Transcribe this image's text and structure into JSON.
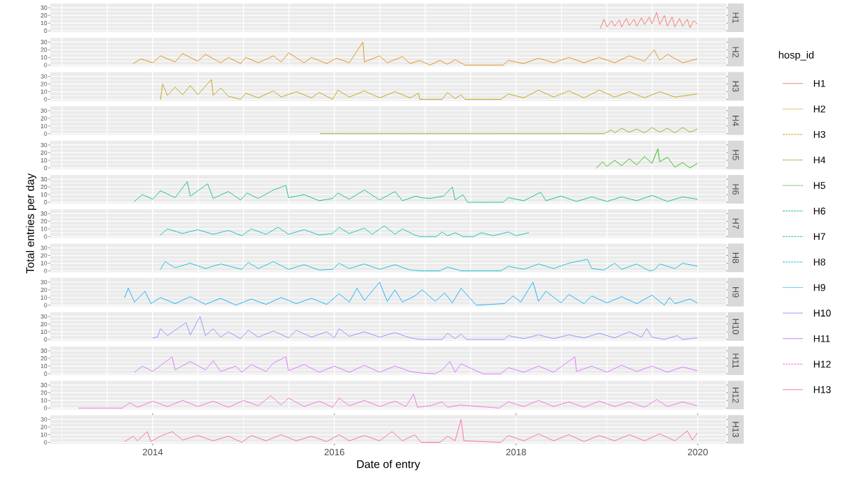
{
  "chart_data": [
    {
      "type": "line",
      "legend": "right",
      "legend_title": "hosp_id",
      "grid": true,
      "tick_labels": "y",
      "xlim": [
        "2012-11-15",
        "2020-04-25"
      ],
      "ylim": [
        -1.7,
        35.6
      ],
      "xticks": [
        {
          "value": "2013-01-01",
          "label": null
        },
        {
          "value": "2014-01-01",
          "label": null
        },
        {
          "value": "2015-01-01",
          "label": null
        },
        {
          "value": "2016-01-01",
          "label": null
        },
        {
          "value": "2017-01-01",
          "label": null
        },
        {
          "value": "2018-01-01",
          "label": null
        },
        {
          "value": "2019-01-01",
          "label": null
        },
        {
          "value": "2020-01-01",
          "label": null
        }
      ],
      "yticks": [
        0,
        {
          "value": 5,
          "label": null
        },
        10,
        {
          "value": 15,
          "label": null
        },
        20,
        {
          "value": 25,
          "label": null
        },
        30
      ],
      "series": [
        {
          "name": "H1",
          "color": "#f8766d",
          "line_style": "solid",
          "x": [
            "2018-12-05",
            "2018-12-20",
            "2019-01",
            "2019-01-20",
            "2019-02",
            "2019-02-20",
            "2019-03",
            "2019-03-20",
            "2019-04",
            "2019-04-20",
            "2019-05",
            "2019-05-20",
            "2019-06",
            "2019-06-20",
            "2019-07",
            "2019-07-20",
            "2019-08",
            "2019-08-20",
            "2019-09",
            "2019-09-20",
            "2019-10",
            "2019-10-20",
            "2019-11",
            "2019-11-20",
            "2019-12",
            "2019-12-15",
            "2019-12-30"
          ],
          "values": [
            3,
            15,
            5,
            13,
            6,
            14,
            5,
            16,
            7,
            15,
            6,
            17,
            8,
            18,
            9,
            24,
            8,
            20,
            6,
            18,
            5,
            16,
            6,
            15,
            4,
            13,
            9
          ]
        }
      ]
    },
    {
      "type": "line",
      "grid": true,
      "tick_labels": "y",
      "xlim": [
        "2012-11-15",
        "2020-04-25"
      ],
      "ylim": [
        -1.7,
        35.6
      ],
      "xticks": [
        {
          "value": "2013-01-01",
          "label": null
        },
        {
          "value": "2014-01-01",
          "label": null
        },
        {
          "value": "2015-01-01",
          "label": null
        },
        {
          "value": "2016-01-01",
          "label": null
        },
        {
          "value": "2017-01-01",
          "label": null
        },
        {
          "value": "2018-01-01",
          "label": null
        },
        {
          "value": "2019-01-01",
          "label": null
        },
        {
          "value": "2020-01-01",
          "label": null
        }
      ],
      "yticks": [
        0,
        {
          "value": 5,
          "label": null
        },
        10,
        {
          "value": 15,
          "label": null
        },
        20,
        {
          "value": 25,
          "label": null
        },
        30
      ],
      "series": [
        {
          "name": "H2",
          "color": "#e18a00",
          "line_style": "dotted",
          "x": [
            "2013-10-15",
            "2013-11-15",
            "2014-01",
            "2014-02",
            "2014-04",
            "2014-05",
            "2014-07",
            "2014-08",
            "2014-10",
            "2014-11",
            "2014-12-20",
            "2015-01-10",
            "2015-03",
            "2015-05",
            "2015-06",
            "2015-07",
            "2015-09",
            "2015-10",
            "2015-12",
            "2016-01-10",
            "2016-03",
            "2016-04-25",
            "2016-05",
            "2016-07",
            "2016-08",
            "2016-10",
            "2016-11",
            "2016-12-10",
            "2017-01-20",
            "2017-03",
            "2017-04",
            "2017-05",
            "2017-06-10",
            "2017-11-10",
            "2017-12",
            "2018-02",
            "2018-04",
            "2018-06",
            "2018-08",
            "2018-10",
            "2018-12",
            "2019-02",
            "2019-04",
            "2019-06",
            "2019-07-10",
            "2019-08",
            "2019-09",
            "2019-11",
            "2019-12-30"
          ],
          "values": [
            2,
            8,
            3,
            12,
            4,
            15,
            5,
            14,
            3,
            10,
            2,
            10,
            3,
            12,
            4,
            16,
            3,
            10,
            2,
            9,
            3,
            30,
            4,
            12,
            3,
            11,
            2,
            6,
            0,
            6,
            1,
            7,
            0,
            0,
            6,
            2,
            9,
            3,
            10,
            3,
            10,
            3,
            12,
            5,
            20,
            6,
            14,
            3,
            8
          ]
        }
      ]
    },
    {
      "type": "line",
      "grid": true,
      "tick_labels": "y",
      "xlim": [
        "2012-11-15",
        "2020-04-25"
      ],
      "ylim": [
        -1.7,
        35.6
      ],
      "xticks": [
        {
          "value": "2013-01-01",
          "label": null
        },
        {
          "value": "2014-01-01",
          "label": null
        },
        {
          "value": "2015-01-01",
          "label": null
        },
        {
          "value": "2016-01-01",
          "label": null
        },
        {
          "value": "2017-01-01",
          "label": null
        },
        {
          "value": "2018-01-01",
          "label": null
        },
        {
          "value": "2019-01-01",
          "label": null
        },
        {
          "value": "2020-01-01",
          "label": null
        }
      ],
      "yticks": [
        0,
        {
          "value": 5,
          "label": null
        },
        10,
        {
          "value": 15,
          "label": null
        },
        20,
        {
          "value": 25,
          "label": null
        },
        30
      ],
      "series": [
        {
          "name": "H3",
          "color": "#be9c00",
          "line_style": "dashed",
          "x": [
            "2014-02-01",
            "2014-02-10",
            "2014-03",
            "2014-04",
            "2014-05",
            "2014-06",
            "2014-07",
            "2014-08-25",
            "2014-09",
            "2014-10",
            "2014-11",
            "2014-12-20",
            "2015-01-10",
            "2015-03",
            "2015-05",
            "2015-06",
            "2015-08",
            "2015-10",
            "2015-11",
            "2015-12-25",
            "2016-01-15",
            "2016-03",
            "2016-05",
            "2016-07",
            "2016-09",
            "2016-11",
            "2016-12-05",
            "2016-12-10",
            "2017-03-10",
            "2017-04",
            "2017-05",
            "2017-05-25",
            "2017-06-10",
            "2017-11-01",
            "2017-12",
            "2018-02",
            "2018-04",
            "2018-06",
            "2018-08",
            "2018-10",
            "2018-12",
            "2019-02",
            "2019-04",
            "2019-06",
            "2019-08",
            "2019-10",
            "2019-12-30"
          ],
          "values": [
            0,
            20,
            5,
            16,
            6,
            18,
            6,
            26,
            5,
            15,
            4,
            0,
            8,
            2,
            11,
            3,
            10,
            2,
            9,
            0,
            12,
            3,
            11,
            2,
            10,
            2,
            8,
            0,
            0,
            9,
            1,
            6,
            0,
            0,
            7,
            2,
            12,
            3,
            11,
            2,
            12,
            3,
            10,
            2,
            10,
            3,
            7
          ]
        }
      ]
    },
    {
      "type": "line",
      "grid": true,
      "tick_labels": "y",
      "xlim": [
        "2012-11-15",
        "2020-04-25"
      ],
      "ylim": [
        -1.7,
        35.6
      ],
      "xticks": [
        {
          "value": "2013-01-01",
          "label": null
        },
        {
          "value": "2014-01-01",
          "label": null
        },
        {
          "value": "2015-01-01",
          "label": null
        },
        {
          "value": "2016-01-01",
          "label": null
        },
        {
          "value": "2017-01-01",
          "label": null
        },
        {
          "value": "2018-01-01",
          "label": null
        },
        {
          "value": "2019-01-01",
          "label": null
        },
        {
          "value": "2020-01-01",
          "label": null
        }
      ],
      "yticks": [
        0,
        {
          "value": 5,
          "label": null
        },
        10,
        {
          "value": 15,
          "label": null
        },
        20,
        {
          "value": 25,
          "label": null
        },
        30
      ],
      "series": [
        {
          "name": "H4",
          "color": "#8cab00",
          "line_style": "dashed",
          "x": [
            "2015-11-05",
            "2018-12-20",
            "2019-01-20",
            "2019-02",
            "2019-03",
            "2019-04",
            "2019-05",
            "2019-06",
            "2019-07",
            "2019-08",
            "2019-09",
            "2019-10",
            "2019-11",
            "2019-12",
            "2019-12-30"
          ],
          "values": [
            0,
            0,
            5,
            1,
            7,
            2,
            6,
            1,
            8,
            2,
            7,
            1,
            8,
            2,
            6
          ]
        }
      ]
    },
    {
      "type": "line",
      "grid": true,
      "tick_labels": "y",
      "xlim": [
        "2012-11-15",
        "2020-04-25"
      ],
      "ylim": [
        -1.7,
        35.6
      ],
      "xticks": [
        {
          "value": "2013-01-01",
          "label": null
        },
        {
          "value": "2014-01-01",
          "label": null
        },
        {
          "value": "2015-01-01",
          "label": null
        },
        {
          "value": "2016-01-01",
          "label": null
        },
        {
          "value": "2017-01-01",
          "label": null
        },
        {
          "value": "2018-01-01",
          "label": null
        },
        {
          "value": "2019-01-01",
          "label": null
        },
        {
          "value": "2020-01-01",
          "label": null
        }
      ],
      "yticks": [
        0,
        {
          "value": 5,
          "label": null
        },
        10,
        {
          "value": 15,
          "label": null
        },
        20,
        {
          "value": 25,
          "label": null
        },
        30
      ],
      "series": [
        {
          "name": "H5",
          "color": "#24b700",
          "line_style": "dotted",
          "x": [
            "2018-11-20",
            "2018-12-15",
            "2019-01",
            "2019-02",
            "2019-03",
            "2019-04",
            "2019-05",
            "2019-06",
            "2019-07",
            "2019-07-25",
            "2019-08",
            "2019-09",
            "2019-10",
            "2019-11",
            "2019-12",
            "2019-12-30"
          ],
          "values": [
            0,
            8,
            2,
            10,
            3,
            12,
            4,
            15,
            6,
            25,
            8,
            14,
            1,
            7,
            0,
            6
          ]
        }
      ]
    },
    {
      "type": "line",
      "grid": true,
      "tick_labels": "y",
      "xlim": [
        "2012-11-15",
        "2020-04-25"
      ],
      "ylim": [
        -1.7,
        35.6
      ],
      "xticks": [
        {
          "value": "2013-01-01",
          "label": null
        },
        {
          "value": "2014-01-01",
          "label": null
        },
        {
          "value": "2015-01-01",
          "label": null
        },
        {
          "value": "2016-01-01",
          "label": null
        },
        {
          "value": "2017-01-01",
          "label": null
        },
        {
          "value": "2018-01-01",
          "label": null
        },
        {
          "value": "2019-01-01",
          "label": null
        },
        {
          "value": "2020-01-01",
          "label": null
        }
      ],
      "yticks": [
        0,
        {
          "value": 5,
          "label": null
        },
        10,
        {
          "value": 15,
          "label": null
        },
        20,
        {
          "value": 25,
          "label": null
        },
        30
      ],
      "series": [
        {
          "name": "H6",
          "color": "#00be70",
          "line_style": "dashed",
          "x": [
            "2013-10-20",
            "2013-11-20",
            "2014-01",
            "2014-02",
            "2014-04",
            "2014-05-20",
            "2014-06",
            "2014-08-10",
            "2014-09",
            "2014-11",
            "2014-12-20",
            "2015-01-15",
            "2015-03",
            "2015-05",
            "2015-06-20",
            "2015-07",
            "2015-09",
            "2015-11",
            "2015-12-25",
            "2016-01-15",
            "2016-03",
            "2016-05",
            "2016-07",
            "2016-09",
            "2016-10",
            "2016-11-25",
            "2016-12-15",
            "2017-01-20",
            "2017-03-15",
            "2017-04-20",
            "2017-05",
            "2017-06-01",
            "2017-06-20",
            "2017-11-10",
            "2017-12",
            "2018-02",
            "2018-04-10",
            "2018-05",
            "2018-07",
            "2018-09",
            "2018-11",
            "2019-01",
            "2019-03",
            "2019-05",
            "2019-07",
            "2019-09",
            "2019-11",
            "2019-12-30"
          ],
          "values": [
            1,
            10,
            4,
            15,
            6,
            27,
            8,
            24,
            5,
            14,
            3,
            12,
            5,
            16,
            22,
            6,
            10,
            2,
            5,
            12,
            4,
            16,
            3,
            14,
            2,
            8,
            6,
            5,
            8,
            20,
            3,
            10,
            0,
            0,
            6,
            2,
            13,
            2,
            8,
            1,
            7,
            1,
            7,
            2,
            9,
            1,
            7,
            4
          ]
        }
      ]
    },
    {
      "type": "line",
      "ylabel": "Total entries per day",
      "grid": true,
      "tick_labels": "y",
      "xlim": [
        "2012-11-15",
        "2020-04-25"
      ],
      "ylim": [
        -1.7,
        35.6
      ],
      "xticks": [
        {
          "value": "2013-01-01",
          "label": null
        },
        {
          "value": "2014-01-01",
          "label": null
        },
        {
          "value": "2015-01-01",
          "label": null
        },
        {
          "value": "2016-01-01",
          "label": null
        },
        {
          "value": "2017-01-01",
          "label": null
        },
        {
          "value": "2018-01-01",
          "label": null
        },
        {
          "value": "2019-01-01",
          "label": null
        },
        {
          "value": "2020-01-01",
          "label": null
        }
      ],
      "yticks": [
        0,
        {
          "value": 5,
          "label": null
        },
        10,
        {
          "value": 15,
          "label": null
        },
        20,
        {
          "value": 25,
          "label": null
        },
        30
      ],
      "series": [
        {
          "name": "H7",
          "color": "#00c1ab",
          "line_style": "dashed",
          "x": [
            "2014-02-01",
            "2014-03",
            "2014-05",
            "2014-07",
            "2014-09",
            "2014-11",
            "2014-12-25",
            "2015-02",
            "2015-04",
            "2015-05-20",
            "2015-07",
            "2015-09",
            "2015-11",
            "2015-12-25",
            "2016-01-20",
            "2016-03",
            "2016-05",
            "2016-06",
            "2016-07-20",
            "2016-09",
            "2016-10",
            "2016-11-20",
            "2016-12-10",
            "2017-02-15",
            "2017-03-10",
            "2017-04",
            "2017-05",
            "2017-06-01",
            "2017-07-15",
            "2017-08-15",
            "2017-10",
            "2017-12",
            "2018-01",
            "2018-02-20"
          ],
          "values": [
            2,
            10,
            4,
            9,
            3,
            8,
            1,
            10,
            3,
            12,
            3,
            9,
            2,
            4,
            12,
            4,
            11,
            3,
            14,
            3,
            10,
            2,
            0,
            0,
            6,
            1,
            5,
            0,
            0,
            5,
            1,
            6,
            1,
            5
          ]
        }
      ]
    },
    {
      "type": "line",
      "grid": true,
      "tick_labels": "y",
      "xlim": [
        "2012-11-15",
        "2020-04-25"
      ],
      "ylim": [
        -1.7,
        35.6
      ],
      "xticks": [
        {
          "value": "2013-01-01",
          "label": null
        },
        {
          "value": "2014-01-01",
          "label": null
        },
        {
          "value": "2015-01-01",
          "label": null
        },
        {
          "value": "2016-01-01",
          "label": null
        },
        {
          "value": "2017-01-01",
          "label": null
        },
        {
          "value": "2018-01-01",
          "label": null
        },
        {
          "value": "2019-01-01",
          "label": null
        },
        {
          "value": "2020-01-01",
          "label": null
        }
      ],
      "yticks": [
        0,
        {
          "value": 5,
          "label": null
        },
        10,
        {
          "value": 15,
          "label": null
        },
        20,
        {
          "value": 25,
          "label": null
        },
        30
      ],
      "series": [
        {
          "name": "H8",
          "color": "#00bbda",
          "line_style": "dashed",
          "x": [
            "2014-02-01",
            "2014-02-20",
            "2014-04",
            "2014-06",
            "2014-08",
            "2014-10",
            "2014-12-25",
            "2015-01-20",
            "2015-03",
            "2015-05",
            "2015-07",
            "2015-09",
            "2015-11",
            "2015-12-25",
            "2016-01-20",
            "2016-03",
            "2016-05",
            "2016-07",
            "2016-09",
            "2016-11",
            "2016-12-15",
            "2017-03",
            "2017-04",
            "2017-05-25",
            "2017-11",
            "2017-12",
            "2018-02",
            "2018-04",
            "2018-06",
            "2018-08",
            "2018-10-15",
            "2018-11",
            "2018-12-20",
            "2019-02",
            "2019-03",
            "2019-05",
            "2019-06-20",
            "2019-07-10",
            "2019-08",
            "2019-10",
            "2019-11",
            "2019-12-30"
          ],
          "values": [
            2,
            12,
            4,
            10,
            3,
            9,
            2,
            11,
            3,
            12,
            2,
            8,
            1,
            2,
            10,
            3,
            9,
            2,
            8,
            1,
            0,
            0,
            5,
            0,
            0,
            6,
            2,
            9,
            3,
            10,
            15,
            3,
            1,
            10,
            2,
            9,
            0,
            1,
            9,
            3,
            10,
            6
          ]
        }
      ]
    },
    {
      "type": "line",
      "grid": true,
      "tick_labels": "y",
      "xlim": [
        "2012-11-15",
        "2020-04-25"
      ],
      "ylim": [
        -1.7,
        35.6
      ],
      "xticks": [
        {
          "value": "2013-01-01",
          "label": null
        },
        {
          "value": "2014-01-01",
          "label": null
        },
        {
          "value": "2015-01-01",
          "label": null
        },
        {
          "value": "2016-01-01",
          "label": null
        },
        {
          "value": "2017-01-01",
          "label": null
        },
        {
          "value": "2018-01-01",
          "label": null
        },
        {
          "value": "2019-01-01",
          "label": null
        },
        {
          "value": "2020-01-01",
          "label": null
        }
      ],
      "yticks": [
        0,
        {
          "value": 5,
          "label": null
        },
        10,
        {
          "value": 15,
          "label": null
        },
        20,
        {
          "value": 25,
          "label": null
        },
        30
      ],
      "series": [
        {
          "name": "H9",
          "color": "#00acfc",
          "line_style": "dotted",
          "x": [
            "2013-09-10",
            "2013-09-25",
            "2013-10-20",
            "2013-12-01",
            "2013-12-25",
            "2014-02",
            "2014-04",
            "2014-06",
            "2014-08",
            "2014-10",
            "2014-12",
            "2015-02",
            "2015-04",
            "2015-06",
            "2015-08",
            "2015-10",
            "2015-12",
            "2016-01-20",
            "2016-03",
            "2016-04",
            "2016-05",
            "2016-07-01",
            "2016-08",
            "2016-09",
            "2016-10",
            "2016-11-20",
            "2016-12-20",
            "2017-02-10",
            "2017-03-20",
            "2017-04-20",
            "2017-05-25",
            "2017-07-25",
            "2017-11-15",
            "2017-12-20",
            "2018-01-20",
            "2018-03-10",
            "2018-04",
            "2018-05",
            "2018-07",
            "2018-08",
            "2018-10",
            "2018-11",
            "2019-01",
            "2019-03",
            "2019-05",
            "2019-07",
            "2019-08-20",
            "2019-09-10",
            "2019-10",
            "2019-12",
            "2019-12-30"
          ],
          "values": [
            10,
            22,
            4,
            18,
            2,
            10,
            2,
            11,
            1,
            9,
            0,
            8,
            1,
            10,
            2,
            9,
            1,
            15,
            4,
            22,
            6,
            30,
            5,
            20,
            4,
            12,
            20,
            5,
            16,
            3,
            22,
            0,
            2,
            12,
            4,
            30,
            5,
            18,
            3,
            14,
            2,
            12,
            3,
            11,
            2,
            13,
            0,
            10,
            2,
            8,
            3
          ]
        }
      ]
    },
    {
      "type": "line",
      "grid": true,
      "tick_labels": "y",
      "xlim": [
        "2012-11-15",
        "2020-04-25"
      ],
      "ylim": [
        -1.7,
        35.6
      ],
      "xticks": [
        {
          "value": "2013-01-01",
          "label": null
        },
        {
          "value": "2014-01-01",
          "label": null
        },
        {
          "value": "2015-01-01",
          "label": null
        },
        {
          "value": "2016-01-01",
          "label": null
        },
        {
          "value": "2017-01-01",
          "label": null
        },
        {
          "value": "2018-01-01",
          "label": null
        },
        {
          "value": "2019-01-01",
          "label": null
        },
        {
          "value": "2020-01-01",
          "label": null
        }
      ],
      "yticks": [
        0,
        {
          "value": 5,
          "label": null
        },
        10,
        {
          "value": 15,
          "label": null
        },
        20,
        {
          "value": 25,
          "label": null
        },
        30
      ],
      "series": [
        {
          "name": "H10",
          "color": "#8b93ff",
          "line_style": "solid",
          "x": [
            "2014-01-01",
            "2014-01-20",
            "2014-02",
            "2014-03",
            "2014-05-15",
            "2014-06",
            "2014-07-10",
            "2014-08",
            "2014-09",
            "2014-10",
            "2014-11",
            "2014-12-20",
            "2015-01-20",
            "2015-03",
            "2015-05",
            "2015-07",
            "2015-08",
            "2015-10",
            "2015-12",
            "2016-01-01",
            "2016-01-20",
            "2016-03",
            "2016-05",
            "2016-07",
            "2016-09",
            "2016-11",
            "2016-12-10",
            "2017-03-10",
            "2017-04",
            "2017-05",
            "2017-05-25",
            "2017-06-15",
            "2017-11-15",
            "2017-12",
            "2018-02",
            "2018-04",
            "2018-06",
            "2018-08",
            "2018-10",
            "2018-12",
            "2019-02",
            "2019-04",
            "2019-05-20",
            "2019-06-10",
            "2019-07",
            "2019-08-20",
            "2019-10-10",
            "2019-11",
            "2019-12-30"
          ],
          "values": [
            2,
            3,
            14,
            5,
            22,
            6,
            30,
            5,
            14,
            3,
            10,
            1,
            12,
            3,
            11,
            2,
            12,
            3,
            10,
            2,
            14,
            4,
            10,
            3,
            9,
            2,
            0,
            0,
            8,
            1,
            7,
            0,
            0,
            5,
            1,
            6,
            1,
            6,
            2,
            8,
            2,
            10,
            3,
            14,
            3,
            0,
            5,
            0,
            2
          ]
        }
      ]
    },
    {
      "type": "line",
      "grid": true,
      "tick_labels": "y",
      "xlim": [
        "2012-11-15",
        "2020-04-25"
      ],
      "ylim": [
        -1.7,
        35.6
      ],
      "xticks": [
        {
          "value": "2013-01-01",
          "label": null
        },
        {
          "value": "2014-01-01",
          "label": null
        },
        {
          "value": "2015-01-01",
          "label": null
        },
        {
          "value": "2016-01-01",
          "label": null
        },
        {
          "value": "2017-01-01",
          "label": null
        },
        {
          "value": "2018-01-01",
          "label": null
        },
        {
          "value": "2019-01-01",
          "label": null
        },
        {
          "value": "2020-01-01",
          "label": null
        }
      ],
      "yticks": [
        0,
        {
          "value": 5,
          "label": null
        },
        10,
        {
          "value": 15,
          "label": null
        },
        20,
        {
          "value": 25,
          "label": null
        },
        30
      ],
      "series": [
        {
          "name": "H11",
          "color": "#d575fe",
          "line_style": "solid",
          "x": [
            "2013-10-20",
            "2013-11-20",
            "2014-01",
            "2014-03-20",
            "2014-04",
            "2014-06",
            "2014-08",
            "2014-09",
            "2014-10",
            "2014-12",
            "2014-12-25",
            "2015-02",
            "2015-04",
            "2015-05",
            "2015-06-20",
            "2015-07",
            "2015-09",
            "2015-11",
            "2016-01",
            "2016-03",
            "2016-05",
            "2016-07",
            "2016-09",
            "2016-11",
            "2016-12-10",
            "2017-02-10",
            "2017-03-10",
            "2017-04-10",
            "2017-05",
            "2017-05-25",
            "2017-08-20",
            "2017-11-01",
            "2017-12",
            "2018-02",
            "2018-04",
            "2018-06",
            "2018-08-25",
            "2018-09",
            "2018-11",
            "2019-01",
            "2019-03",
            "2019-05",
            "2019-07",
            "2019-09",
            "2019-11",
            "2019-12-30"
          ],
          "values": [
            2,
            10,
            3,
            22,
            5,
            16,
            5,
            17,
            3,
            10,
            2,
            12,
            3,
            14,
            22,
            4,
            12,
            2,
            10,
            2,
            11,
            2,
            10,
            3,
            1,
            0,
            5,
            16,
            2,
            13,
            0,
            0,
            8,
            2,
            10,
            2,
            22,
            3,
            10,
            2,
            11,
            3,
            10,
            2,
            9,
            4
          ]
        }
      ]
    },
    {
      "type": "line",
      "grid": true,
      "tick_labels": "y",
      "xlim": [
        "2012-11-15",
        "2020-04-25"
      ],
      "ylim": [
        -1.7,
        35.6
      ],
      "xticks": [
        {
          "value": "2013-01-01",
          "label": null
        },
        {
          "value": "2014-01-01",
          "label": null
        },
        {
          "value": "2015-01-01",
          "label": null
        },
        {
          "value": "2016-01-01",
          "label": null
        },
        {
          "value": "2017-01-01",
          "label": null
        },
        {
          "value": "2018-01-01",
          "label": null
        },
        {
          "value": "2019-01-01",
          "label": null
        },
        {
          "value": "2020-01-01",
          "label": null
        }
      ],
      "yticks": [
        0,
        {
          "value": 5,
          "label": null
        },
        10,
        {
          "value": 15,
          "label": null
        },
        20,
        {
          "value": 25,
          "label": null
        },
        30
      ],
      "series": [
        {
          "name": "H12",
          "color": "#f962dd",
          "line_style": "dashed",
          "x": [
            "2013-03-10",
            "2013-09-01",
            "2013-10",
            "2013-11",
            "2014-01",
            "2014-03",
            "2014-05",
            "2014-07",
            "2014-09",
            "2014-11",
            "2015-01",
            "2015-03",
            "2015-04-20",
            "2015-06",
            "2015-07",
            "2015-09",
            "2015-11",
            "2015-12-25",
            "2016-01-20",
            "2016-03",
            "2016-05",
            "2016-07",
            "2016-09",
            "2016-10-15",
            "2016-11-15",
            "2016-12-01",
            "2017-01-20",
            "2017-03-10",
            "2017-04",
            "2017-05-20",
            "2017-10-25",
            "2017-12",
            "2018-02",
            "2018-04",
            "2018-06",
            "2018-08",
            "2018-10",
            "2018-12",
            "2019-02",
            "2019-04",
            "2019-06",
            "2019-07-20",
            "2019-09",
            "2019-11",
            "2019-12-30"
          ],
          "values": [
            0,
            0,
            7,
            1,
            9,
            2,
            10,
            2,
            9,
            1,
            10,
            3,
            16,
            4,
            13,
            2,
            9,
            1,
            13,
            3,
            10,
            2,
            9,
            2,
            18,
            1,
            3,
            8,
            1,
            4,
            0,
            8,
            2,
            10,
            2,
            8,
            1,
            9,
            2,
            8,
            1,
            11,
            2,
            8,
            3
          ]
        }
      ]
    },
    {
      "type": "line",
      "xlabel": "Date of entry",
      "grid": true,
      "xlim": [
        "2012-11-15",
        "2020-04-25"
      ],
      "ylim": [
        -1.7,
        35.6
      ],
      "xticks": [
        {
          "value": "2013-01-01",
          "label": null
        },
        {
          "value": "2014-01-01",
          "label": "2014"
        },
        {
          "value": "2015-01-01",
          "label": null
        },
        {
          "value": "2016-01-01",
          "label": "2016"
        },
        {
          "value": "2017-01-01",
          "label": null
        },
        {
          "value": "2018-01-01",
          "label": "2018"
        },
        {
          "value": "2019-01-01",
          "label": null
        },
        {
          "value": "2020-01-01",
          "label": "2020"
        }
      ],
      "yticks": [
        0,
        {
          "value": 5,
          "label": null
        },
        10,
        {
          "value": 15,
          "label": null
        },
        20,
        {
          "value": 25,
          "label": null
        },
        30
      ],
      "series": [
        {
          "name": "H13",
          "color": "#ff65ac",
          "line_style": "solid",
          "x": [
            "2013-09-10",
            "2013-10-15",
            "2013-11",
            "2013-12-10",
            "2013-12-25",
            "2014-02",
            "2014-03-20",
            "2014-05",
            "2014-07",
            "2014-09",
            "2014-11",
            "2014-12-25",
            "2015-02",
            "2015-04",
            "2015-06",
            "2015-08",
            "2015-10",
            "2015-12",
            "2016-01-20",
            "2016-03",
            "2016-05",
            "2016-07",
            "2016-08-20",
            "2016-10",
            "2016-11-20",
            "2016-12-15",
            "2017-03-01",
            "2017-04",
            "2017-05",
            "2017-05-25",
            "2017-06-05",
            "2017-11-01",
            "2017-12",
            "2018-02",
            "2018-04",
            "2018-06",
            "2018-08",
            "2018-10",
            "2018-12",
            "2019-02",
            "2019-04",
            "2019-06",
            "2019-08",
            "2019-10",
            "2019-11-20",
            "2019-12-10",
            "2019-12-30"
          ],
          "values": [
            1,
            8,
            2,
            14,
            1,
            8,
            14,
            3,
            9,
            2,
            8,
            0,
            9,
            2,
            10,
            2,
            8,
            1,
            10,
            2,
            9,
            2,
            14,
            2,
            10,
            0,
            0,
            8,
            2,
            30,
            2,
            0,
            9,
            2,
            11,
            2,
            10,
            1,
            9,
            2,
            10,
            2,
            11,
            2,
            15,
            3,
            12
          ]
        }
      ]
    }
  ]
}
